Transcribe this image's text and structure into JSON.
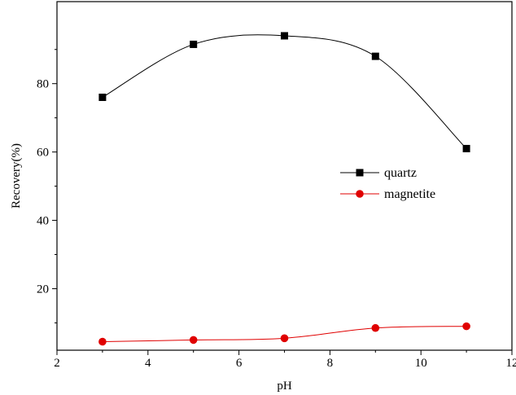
{
  "chart_data": {
    "type": "scatter",
    "title": "",
    "xlabel": "pH",
    "ylabel": "Recovery(%)",
    "xlim": [
      2,
      12
    ],
    "ylim": [
      2,
      104
    ],
    "xticks": [
      2,
      4,
      6,
      8,
      10,
      12
    ],
    "yticks": [
      20,
      40,
      60,
      80
    ],
    "grid": false,
    "legend_position": "center-right",
    "series": [
      {
        "name": "quartz",
        "marker": "square",
        "color": "#000000",
        "x": [
          3,
          5,
          7,
          9,
          11
        ],
        "y": [
          76,
          91.5,
          94,
          88,
          61
        ]
      },
      {
        "name": "magnetite",
        "marker": "circle",
        "color": "#e00000",
        "x": [
          3,
          5,
          7,
          9,
          11
        ],
        "y": [
          4.5,
          5,
          5.5,
          8.5,
          9
        ]
      }
    ]
  }
}
